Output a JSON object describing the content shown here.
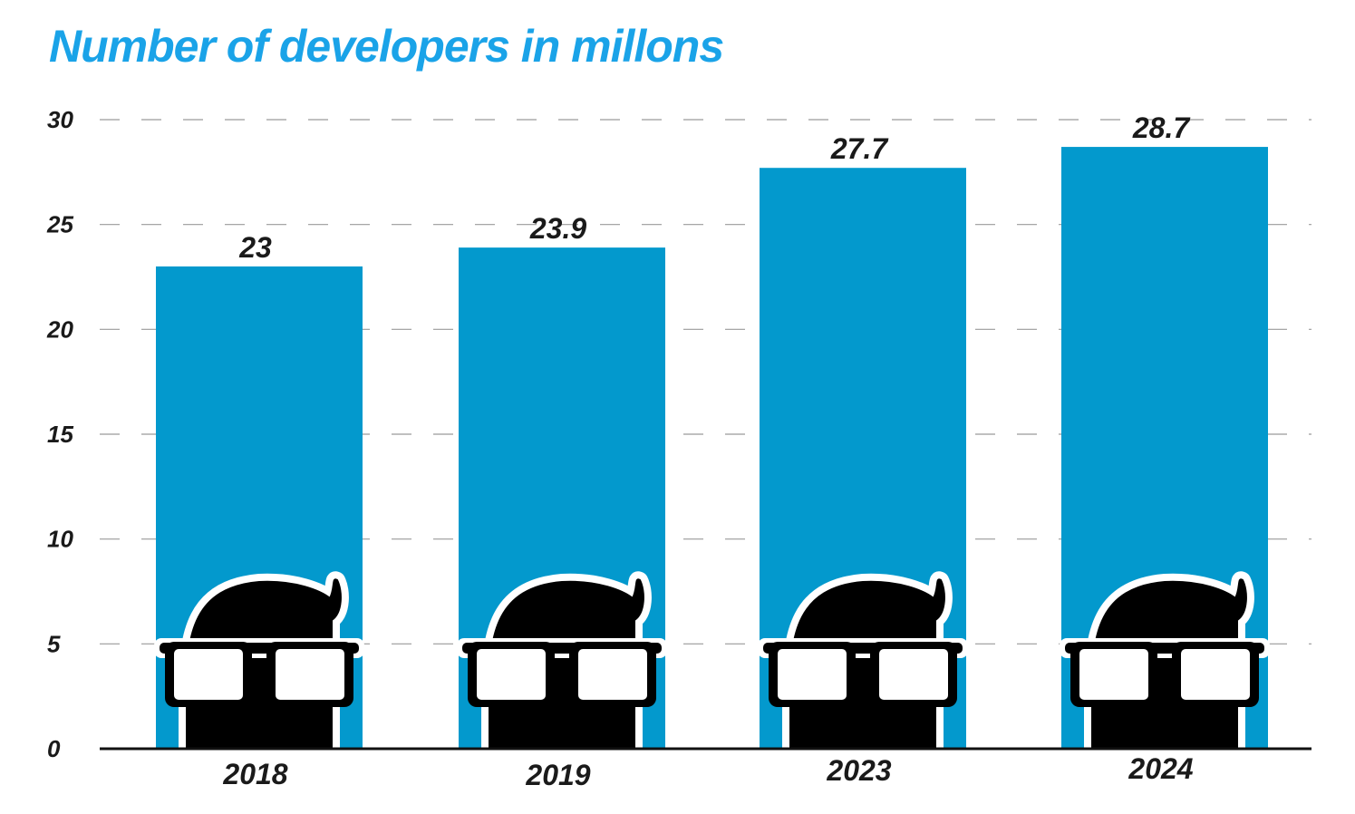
{
  "chart_data": {
    "type": "bar",
    "title": "Number of developers in millons",
    "categories": [
      "2018",
      "2019",
      "2023",
      "2024"
    ],
    "values": [
      23,
      23.9,
      27.7,
      28.7
    ],
    "value_labels": [
      "23",
      "23.9",
      "27.7",
      "28.7"
    ],
    "ylim": [
      0,
      30
    ],
    "yticks": [
      "0",
      "5",
      "10",
      "15",
      "20",
      "25",
      "30"
    ],
    "grid": true,
    "grid_style": "dashed",
    "legend": "none",
    "xlabel": "",
    "ylabel": ""
  },
  "colors": {
    "title": "#1aa3e8",
    "bar": "#0399cd",
    "grid": "#9a9a9a",
    "axis": "#111111",
    "mascot": "#000000",
    "text": "#1a1a1a"
  },
  "icons": {
    "bar_decoration": "developer-head-with-glasses-icon"
  }
}
